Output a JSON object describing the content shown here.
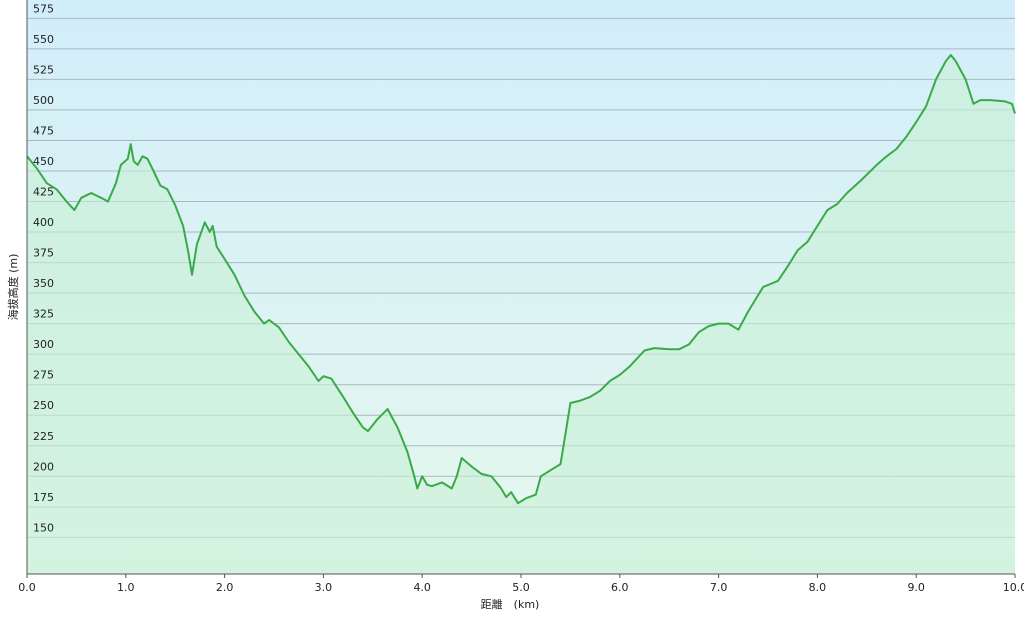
{
  "chart_data": {
    "type": "area",
    "x_label": "距離　(km)",
    "y_label": "海拔高度 (m)",
    "color": "#3aaa48",
    "fill_color": "#c8f0d6",
    "xlim": [
      0,
      10
    ],
    "ylim": [
      120,
      590
    ],
    "xticks": [
      {
        "value": 0,
        "label": "0.0"
      },
      {
        "value": 1,
        "label": "1.0"
      },
      {
        "value": 2,
        "label": "2.0"
      },
      {
        "value": 3,
        "label": "3.0"
      },
      {
        "value": 4,
        "label": "4.0"
      },
      {
        "value": 5,
        "label": "5.0"
      },
      {
        "value": 6,
        "label": "6.0"
      },
      {
        "value": 7,
        "label": "7.0"
      },
      {
        "value": 8,
        "label": "8.0"
      },
      {
        "value": 9,
        "label": "9.0"
      },
      {
        "value": 10,
        "label": "10.0"
      }
    ],
    "yticks": [
      150,
      175,
      200,
      225,
      250,
      275,
      300,
      325,
      350,
      375,
      400,
      425,
      450,
      475,
      500,
      525,
      550,
      575
    ],
    "grid": true,
    "x": [
      0.0,
      0.1,
      0.2,
      0.3,
      0.4,
      0.48,
      0.55,
      0.65,
      0.75,
      0.82,
      0.9,
      0.95,
      1.02,
      1.05,
      1.08,
      1.12,
      1.17,
      1.22,
      1.28,
      1.35,
      1.42,
      1.5,
      1.58,
      1.63,
      1.67,
      1.72,
      1.8,
      1.85,
      1.88,
      1.92,
      2.0,
      2.1,
      2.2,
      2.3,
      2.4,
      2.45,
      2.55,
      2.65,
      2.75,
      2.85,
      2.95,
      3.0,
      3.08,
      3.2,
      3.3,
      3.4,
      3.45,
      3.55,
      3.65,
      3.75,
      3.85,
      3.92,
      3.95,
      4.0,
      4.05,
      4.1,
      4.2,
      4.3,
      4.35,
      4.4,
      4.5,
      4.6,
      4.7,
      4.8,
      4.85,
      4.9,
      4.97,
      5.05,
      5.15,
      5.2,
      5.3,
      5.4,
      5.45,
      5.5,
      5.6,
      5.7,
      5.8,
      5.9,
      6.0,
      6.1,
      6.25,
      6.35,
      6.5,
      6.6,
      6.7,
      6.8,
      6.9,
      7.0,
      7.1,
      7.2,
      7.3,
      7.45,
      7.6,
      7.7,
      7.8,
      7.9,
      8.0,
      8.1,
      8.2,
      8.3,
      8.45,
      8.6,
      8.7,
      8.8,
      8.9,
      9.0,
      9.1,
      9.2,
      9.3,
      9.35,
      9.4,
      9.5,
      9.58,
      9.65,
      9.75,
      9.9,
      9.97,
      10.0
    ],
    "values": [
      462,
      452,
      440,
      435,
      425,
      418,
      428,
      432,
      428,
      425,
      440,
      455,
      460,
      472,
      458,
      455,
      462,
      460,
      450,
      438,
      435,
      422,
      405,
      385,
      365,
      390,
      408,
      400,
      405,
      388,
      378,
      365,
      348,
      335,
      325,
      328,
      322,
      310,
      300,
      290,
      278,
      282,
      280,
      265,
      252,
      240,
      237,
      247,
      255,
      240,
      220,
      200,
      190,
      200,
      193,
      192,
      195,
      190,
      200,
      215,
      208,
      202,
      200,
      190,
      183,
      187,
      178,
      182,
      185,
      200,
      205,
      210,
      235,
      260,
      262,
      265,
      270,
      278,
      283,
      290,
      303,
      305,
      304,
      304,
      308,
      318,
      323,
      325,
      325,
      320,
      335,
      355,
      360,
      372,
      385,
      392,
      405,
      418,
      423,
      432,
      443,
      455,
      462,
      468,
      478,
      490,
      503,
      525,
      540,
      545,
      540,
      525,
      505,
      508,
      508,
      507,
      505,
      497
    ]
  }
}
